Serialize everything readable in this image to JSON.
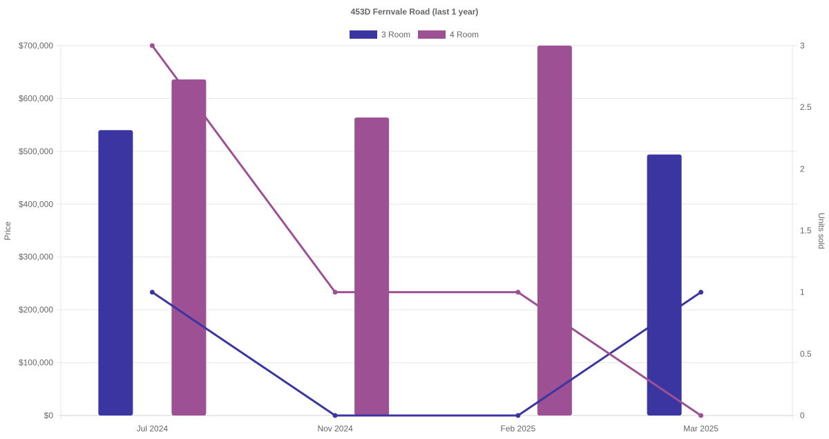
{
  "chart_data": {
    "type": "bar",
    "title": "453D Fernvale Road (last 1 year)",
    "categories": [
      "Jul 2024",
      "Nov 2024",
      "Feb 2025",
      "Mar 2025"
    ],
    "ylabel": "Price",
    "y2label": "Units sold",
    "ylim": [
      0,
      700000
    ],
    "y2lim": [
      0,
      3
    ],
    "y_ticks": [
      "$0",
      "$100,000",
      "$200,000",
      "$300,000",
      "$400,000",
      "$500,000",
      "$600,000",
      "$700,000"
    ],
    "y_tick_values": [
      0,
      100000,
      200000,
      300000,
      400000,
      500000,
      600000,
      700000
    ],
    "y2_ticks": [
      "0",
      "0.5",
      "1",
      "1.5",
      "2",
      "2.5",
      "3"
    ],
    "y2_tick_values": [
      0,
      0.5,
      1,
      1.5,
      2,
      2.5,
      3
    ],
    "grid": true,
    "legend_position": "top-center",
    "series": [
      {
        "name": "3 Room",
        "color": "#3a35a0",
        "price": [
          540000,
          null,
          null,
          494000
        ],
        "units_sold": [
          1,
          0,
          0,
          1
        ]
      },
      {
        "name": "4 Room",
        "color": "#9e5094",
        "price": [
          636000,
          564000,
          700000,
          null
        ],
        "units_sold": [
          3,
          1,
          1,
          0
        ]
      }
    ]
  }
}
